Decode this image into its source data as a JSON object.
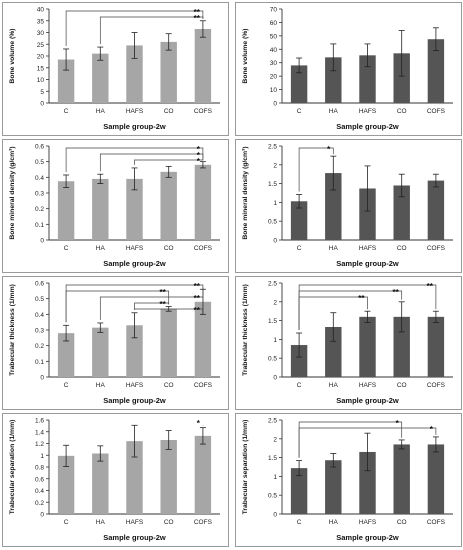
{
  "chart_data": [
    {
      "type": "bar",
      "categories": [
        "C",
        "HA",
        "HAFS",
        "CO",
        "COFS"
      ],
      "values": [
        18.5,
        21,
        24.5,
        26,
        31.5
      ],
      "errors": [
        4.5,
        2.8,
        5.5,
        3.5,
        3.5
      ],
      "color": "#a6a6a6",
      "xlabel": "Sample group-2w",
      "ylabel": "Bone volume (%)",
      "ylim": [
        0,
        40
      ],
      "yticks": [
        "0",
        "5",
        "10",
        "15",
        "20",
        "25",
        "30",
        "35",
        "40"
      ],
      "significance": [
        {
          "from": "C",
          "to": "COFS",
          "label": "**"
        },
        {
          "from": "HA",
          "to": "COFS",
          "label": "**"
        }
      ]
    },
    {
      "type": "bar",
      "categories": [
        "C",
        "HA",
        "HAFS",
        "CO",
        "COFS"
      ],
      "values": [
        28,
        34,
        35.5,
        37,
        47.5
      ],
      "errors": [
        5.5,
        10,
        8.5,
        17,
        8.5
      ],
      "color": "#555555",
      "xlabel": "Sample group-2w",
      "ylabel": "Bone volume (%)",
      "ylim": [
        0,
        70
      ],
      "yticks": [
        "0",
        "10",
        "20",
        "30",
        "40",
        "50",
        "60",
        "70"
      ],
      "significance": []
    },
    {
      "type": "bar",
      "categories": [
        "C",
        "HA",
        "HAFS",
        "CO",
        "COFS"
      ],
      "values": [
        0.375,
        0.39,
        0.39,
        0.435,
        0.48
      ],
      "errors": [
        0.04,
        0.03,
        0.07,
        0.035,
        0.02
      ],
      "color": "#a6a6a6",
      "xlabel": "Sample group-2w",
      "ylabel": "Bone mineral density (g/cm³)",
      "ylim": [
        0,
        0.6
      ],
      "yticks": [
        "0",
        "0.1",
        "0.2",
        "0.3",
        "0.4",
        "0.5",
        "0.6"
      ],
      "significance": [
        {
          "from": "C",
          "to": "COFS",
          "label": "*"
        },
        {
          "from": "HA",
          "to": "COFS",
          "label": "*"
        },
        {
          "from": "HAFS",
          "to": "COFS",
          "label": "*"
        }
      ]
    },
    {
      "type": "bar",
      "categories": [
        "C",
        "HA",
        "HAFS",
        "CO",
        "COFS"
      ],
      "values": [
        1.03,
        1.78,
        1.37,
        1.45,
        1.58
      ],
      "errors": [
        0.18,
        0.45,
        0.6,
        0.3,
        0.17
      ],
      "color": "#555555",
      "xlabel": "Sample group-2w",
      "ylabel": "Bone mineral density (g/cm³)",
      "ylim": [
        0,
        2.5
      ],
      "yticks": [
        "0",
        "0.5",
        "1",
        "1.5",
        "2",
        "2.5"
      ],
      "significance": [
        {
          "from": "C",
          "to": "HA",
          "label": "*"
        }
      ]
    },
    {
      "type": "bar",
      "categories": [
        "C",
        "HA",
        "HAFS",
        "CO",
        "COFS"
      ],
      "values": [
        0.28,
        0.315,
        0.33,
        0.435,
        0.48
      ],
      "errors": [
        0.05,
        0.03,
        0.08,
        0.015,
        0.08
      ],
      "color": "#a6a6a6",
      "xlabel": "Sample group-2w",
      "ylabel": "Trabecular thickness (1/mm)",
      "ylim": [
        0,
        0.6
      ],
      "yticks": [
        "0",
        "0.1",
        "0.2",
        "0.3",
        "0.4",
        "0.5",
        "0.6"
      ],
      "significance": [
        {
          "from": "C",
          "to": "COFS",
          "label": "**"
        },
        {
          "from": "C",
          "to": "CO",
          "label": "**"
        },
        {
          "from": "HA",
          "to": "COFS",
          "label": "**"
        },
        {
          "from": "HAFS",
          "to": "CO",
          "label": "**"
        },
        {
          "from": "HAFS",
          "to": "COFS",
          "label": "**"
        }
      ]
    },
    {
      "type": "bar",
      "categories": [
        "C",
        "HA",
        "HAFS",
        "CO",
        "COFS"
      ],
      "values": [
        0.85,
        1.33,
        1.6,
        1.6,
        1.6
      ],
      "errors": [
        0.32,
        0.38,
        0.15,
        0.4,
        0.15
      ],
      "color": "#555555",
      "xlabel": "Sample group-2w",
      "ylabel": "Trabecular thickness (1/mm)",
      "ylim": [
        0,
        2.5
      ],
      "yticks": [
        "0",
        "0.5",
        "1",
        "1.5",
        "2",
        "2.5"
      ],
      "significance": [
        {
          "from": "C",
          "to": "COFS",
          "label": "**"
        },
        {
          "from": "C",
          "to": "CO",
          "label": "**"
        },
        {
          "from": "C",
          "to": "HAFS",
          "label": "**"
        }
      ]
    },
    {
      "type": "bar",
      "categories": [
        "C",
        "HA",
        "HAFS",
        "CO",
        "COFS"
      ],
      "values": [
        0.99,
        1.03,
        1.24,
        1.26,
        1.33
      ],
      "errors": [
        0.18,
        0.13,
        0.27,
        0.16,
        0.14
      ],
      "color": "#a6a6a6",
      "xlabel": "Sample group-2w",
      "ylabel": "Trabecular separation (1/mm)",
      "ylim": [
        0,
        1.6
      ],
      "yticks": [
        "0",
        "0.2",
        "0.4",
        "0.6",
        "0.8",
        "1",
        "1.2",
        "1.4",
        "1.6"
      ],
      "significance": [
        {
          "from": "COFS",
          "to": "COFS",
          "label": "*"
        }
      ]
    },
    {
      "type": "bar",
      "categories": [
        "C",
        "HA",
        "HAFS",
        "CO",
        "COFS"
      ],
      "values": [
        1.22,
        1.43,
        1.65,
        1.85,
        1.85
      ],
      "errors": [
        0.2,
        0.18,
        0.5,
        0.12,
        0.2
      ],
      "color": "#555555",
      "xlabel": "Sample group-2w",
      "ylabel": "Trabecular separation (1/mm)",
      "ylim": [
        0,
        2.5
      ],
      "yticks": [
        "0",
        "0.5",
        "1",
        "1.5",
        "2",
        "2.5"
      ],
      "significance": [
        {
          "from": "C",
          "to": "CO",
          "label": "*"
        },
        {
          "from": "C",
          "to": "COFS",
          "label": "*"
        }
      ]
    }
  ]
}
